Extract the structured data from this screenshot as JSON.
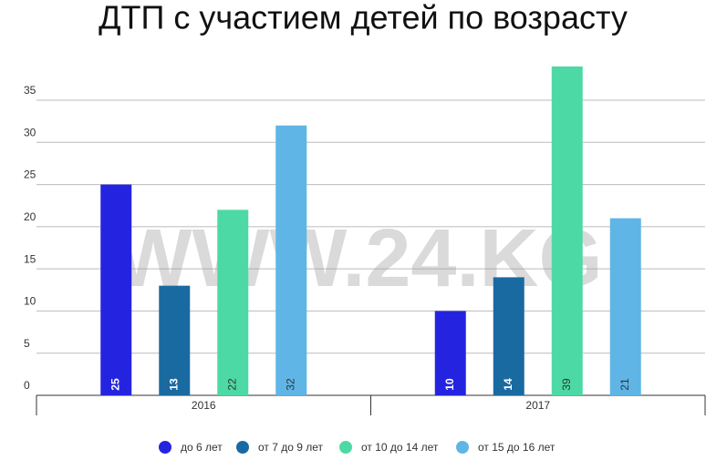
{
  "chart_data": {
    "type": "bar",
    "title": "ДТП с участием детей по возрасту",
    "watermark": "WWW.24.KG",
    "categories": [
      "2016",
      "2017"
    ],
    "series": [
      {
        "name": "до 6 лет",
        "color": "#2424e0",
        "values": [
          25,
          10
        ]
      },
      {
        "name": "от 7 до 9 лет",
        "color": "#1a6aa2",
        "values": [
          13,
          14
        ]
      },
      {
        "name": "от 10 до 14 лет",
        "color": "#4dd9a6",
        "values": [
          22,
          39
        ]
      },
      {
        "name": "от 15 до 16 лет",
        "color": "#5fb5e6",
        "values": [
          32,
          21
        ]
      }
    ],
    "ylim": [
      0,
      40
    ],
    "yticks": [
      0,
      5,
      10,
      15,
      20,
      25,
      30,
      35
    ],
    "grid": true,
    "legend": "bottom"
  }
}
